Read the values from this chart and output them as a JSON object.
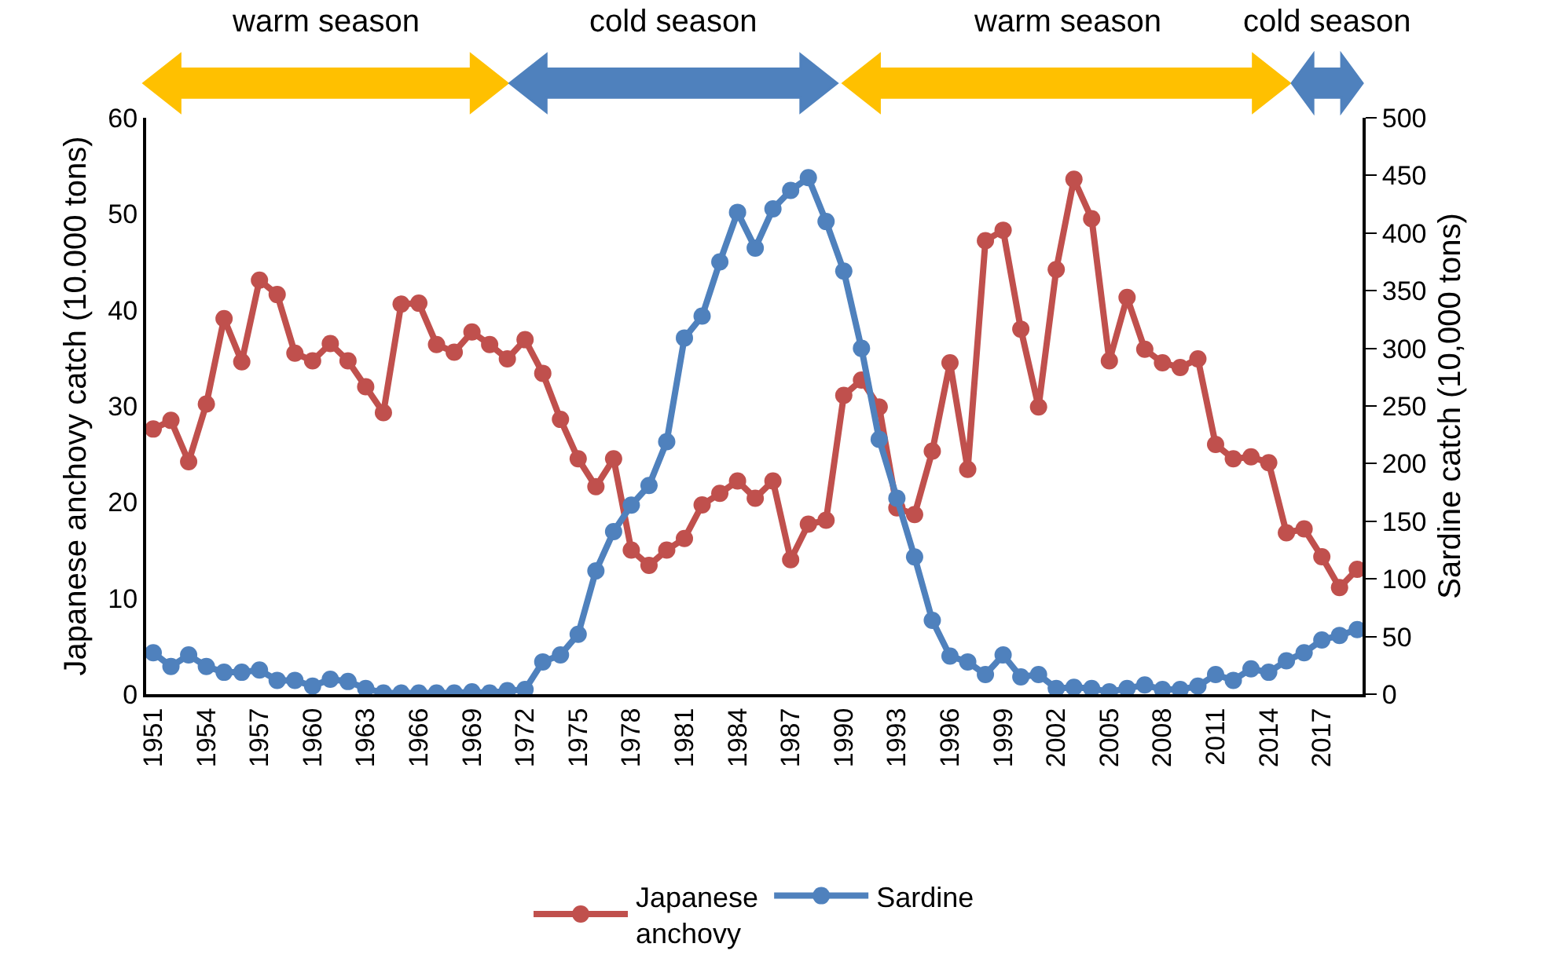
{
  "chart_data": {
    "type": "line",
    "x": [
      1951,
      1952,
      1953,
      1954,
      1955,
      1956,
      1957,
      1958,
      1959,
      1960,
      1961,
      1962,
      1963,
      1964,
      1965,
      1966,
      1967,
      1968,
      1969,
      1970,
      1971,
      1972,
      1973,
      1974,
      1975,
      1976,
      1977,
      1978,
      1979,
      1980,
      1981,
      1982,
      1983,
      1984,
      1985,
      1986,
      1987,
      1988,
      1989,
      1990,
      1991,
      1992,
      1993,
      1994,
      1995,
      1996,
      1997,
      1998,
      1999,
      2000,
      2001,
      2002,
      2003,
      2004,
      2005,
      2006,
      2007,
      2008,
      2009,
      2010,
      2011,
      2012,
      2013,
      2014,
      2015,
      2016,
      2017,
      2018,
      2019
    ],
    "series": [
      {
        "name": "Japanese anchovy",
        "color": "#c0504d",
        "values": [
          27.6,
          28.5,
          24.2,
          30.2,
          39.1,
          34.6,
          43.1,
          41.6,
          35.5,
          34.7,
          36.5,
          34.7,
          32.0,
          29.3,
          40.6,
          40.7,
          36.4,
          35.6,
          37.7,
          36.4,
          34.9,
          36.9,
          33.4,
          28.6,
          24.5,
          21.6,
          24.5,
          15.0,
          13.4,
          15.0,
          16.2,
          19.7,
          20.9,
          22.2,
          20.4,
          22.2,
          14.0,
          17.7,
          18.1,
          31.1,
          32.7,
          29.9,
          19.4,
          18.7,
          25.3,
          34.5,
          23.4,
          47.2,
          48.3,
          38.0,
          29.9,
          44.2,
          53.6,
          49.5,
          34.7,
          41.3,
          35.9,
          34.5,
          34.0,
          34.9,
          26.0,
          24.5,
          24.7,
          24.1,
          16.8,
          17.2,
          14.3,
          11.1,
          13.0
        ]
      },
      {
        "name": "Sardine",
        "color": "#4f81bd",
        "axis": "y2",
        "values": [
          36,
          24,
          34,
          24,
          19,
          19,
          21,
          12,
          12,
          7,
          13,
          11,
          5,
          1,
          1,
          1,
          1,
          1,
          2,
          1,
          3,
          4,
          28,
          34,
          52,
          107,
          141,
          164,
          181,
          219,
          309,
          328,
          375,
          418,
          387,
          421,
          437,
          448,
          410,
          367,
          300,
          221,
          170,
          119,
          64,
          33,
          28,
          17,
          34,
          15,
          17,
          5,
          6,
          5,
          2,
          5,
          8,
          4,
          4,
          7,
          17,
          12,
          22,
          19,
          29,
          36,
          47,
          51,
          56
        ]
      }
    ],
    "ylabel": "Japanese anchovy catch (10.000 tons)",
    "y2label": "Sardine catch (10,000 tons)",
    "xlim": [
      1950.6,
      2019.3
    ],
    "xticks": [
      1951,
      1954,
      1957,
      1960,
      1963,
      1966,
      1969,
      1972,
      1975,
      1978,
      1981,
      1984,
      1987,
      1990,
      1993,
      1996,
      1999,
      2002,
      2005,
      2008,
      2011,
      2014,
      2017
    ],
    "ylim": [
      0,
      60
    ],
    "yticks": [
      0,
      10,
      20,
      30,
      40,
      50,
      60
    ],
    "y2lim": [
      0,
      500
    ],
    "y2ticks": [
      0,
      50,
      100,
      150,
      200,
      250,
      300,
      350,
      400,
      450,
      500
    ],
    "annotations": [
      "warm season",
      "cold season",
      "warm season",
      "cold season"
    ],
    "legend": "bottom",
    "marker": "circle",
    "line_style": "solid"
  }
}
